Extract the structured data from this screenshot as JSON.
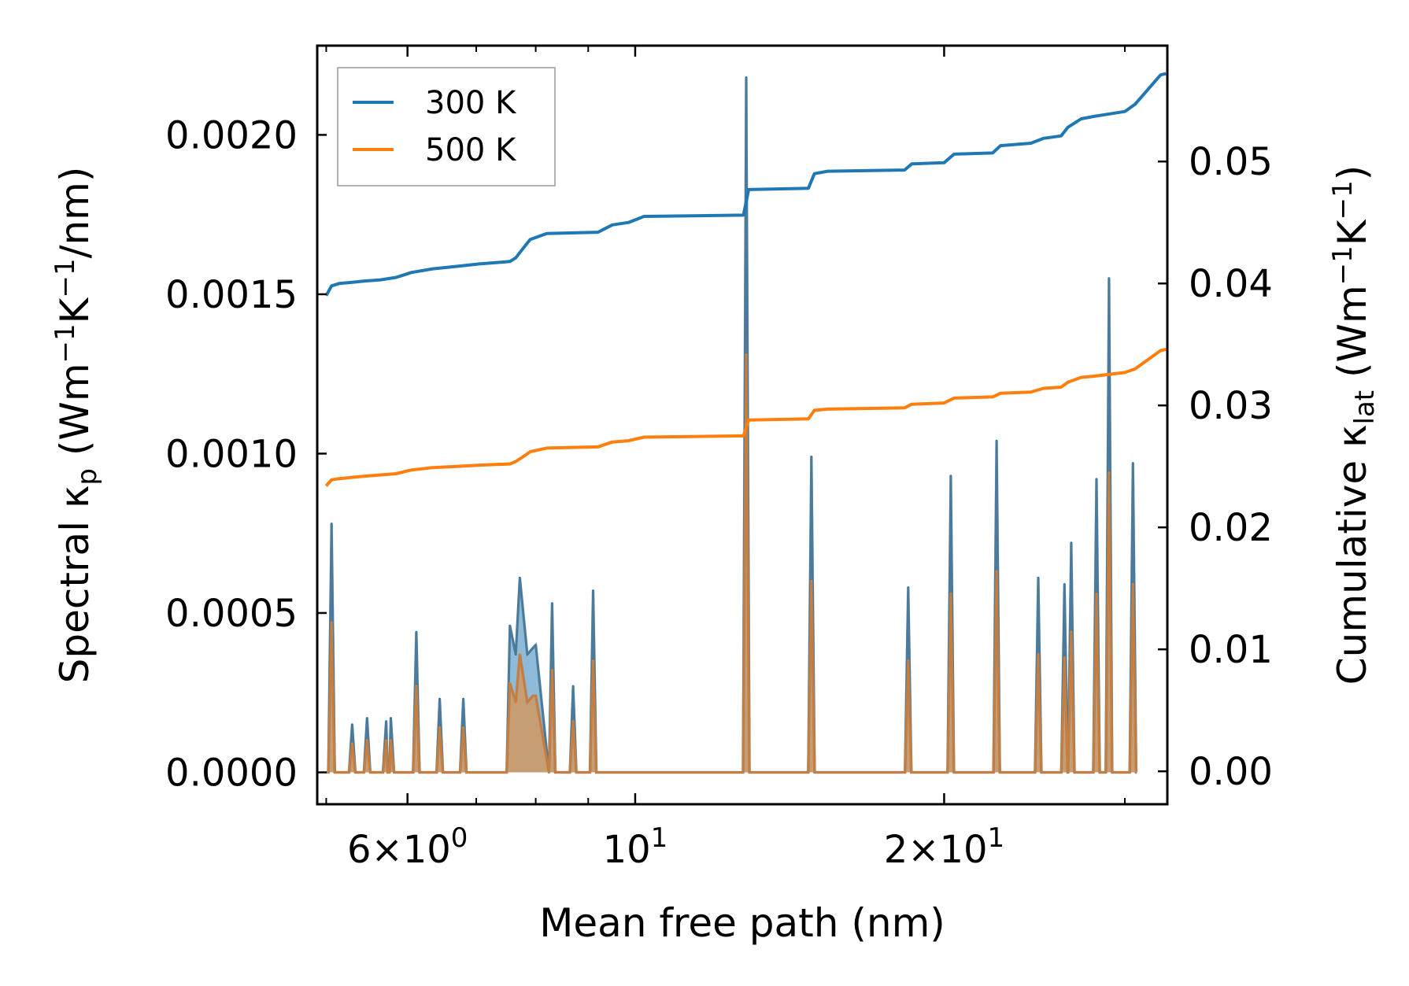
{
  "chart_data": {
    "type": "line",
    "title": "",
    "xlabel": "Mean free path (nm)",
    "ylabel_left": {
      "main": "Spectral κ",
      "sub": "p",
      "unit_open": " (Wm",
      "sup1": "−1",
      "k": "K",
      "sup2": "−1",
      "unit_close": "/nm)"
    },
    "ylabel_right": {
      "main": "Cumulative κ",
      "sub": "lat",
      "unit_open": " (Wm",
      "sup1": "−1",
      "k": "K",
      "sup2": "−1",
      "unit_close": ")"
    },
    "xscale": "log",
    "xlim": [
      4.9,
      33.0
    ],
    "ylim_left": [
      -0.0001,
      0.00228
    ],
    "ylim_right": [
      -0.0027,
      0.0595
    ],
    "x_ticks_major": [
      {
        "value": 6,
        "base": "6",
        "sep": "×",
        "pow": "10",
        "exp": "0"
      },
      {
        "value": 10,
        "base": "",
        "sep": "",
        "pow": "10",
        "exp": "1"
      },
      {
        "value": 20,
        "base": "2",
        "sep": "×",
        "pow": "10",
        "exp": "1"
      }
    ],
    "x_ticks_minor": [
      5,
      7,
      8,
      9,
      30
    ],
    "y_left_ticks": [
      "0.0000",
      "0.0005",
      "0.0010",
      "0.0015",
      "0.0020"
    ],
    "y_right_ticks": [
      "0.00",
      "0.01",
      "0.02",
      "0.03",
      "0.04",
      "0.05"
    ],
    "legend": {
      "position": "top-left",
      "entries": [
        "300 K",
        "500 K"
      ]
    },
    "series": [
      {
        "name": "300 K",
        "axis": "right",
        "kind": "cumulative line",
        "color": "#1f77b4",
        "points": [
          [
            5.0,
            0.039
          ],
          [
            5.06,
            0.0398
          ],
          [
            5.15,
            0.04
          ],
          [
            5.3,
            0.0401
          ],
          [
            5.45,
            0.0402
          ],
          [
            5.65,
            0.0403
          ],
          [
            5.85,
            0.0405
          ],
          [
            6.05,
            0.0409
          ],
          [
            6.35,
            0.0412
          ],
          [
            6.7,
            0.0414
          ],
          [
            7.05,
            0.0416
          ],
          [
            7.55,
            0.0418
          ],
          [
            7.65,
            0.0421
          ],
          [
            7.78,
            0.0429
          ],
          [
            7.9,
            0.0436
          ],
          [
            8.2,
            0.0441
          ],
          [
            9.2,
            0.0442
          ],
          [
            9.5,
            0.0448
          ],
          [
            9.85,
            0.045
          ],
          [
            10.2,
            0.0455
          ],
          [
            12.75,
            0.0456
          ],
          [
            12.9,
            0.0477
          ],
          [
            14.75,
            0.0478
          ],
          [
            14.95,
            0.049
          ],
          [
            15.4,
            0.0492
          ],
          [
            18.3,
            0.0493
          ],
          [
            18.6,
            0.0498
          ],
          [
            20.0,
            0.0499
          ],
          [
            20.45,
            0.0506
          ],
          [
            22.3,
            0.0507
          ],
          [
            22.7,
            0.0513
          ],
          [
            24.3,
            0.0515
          ],
          [
            25.0,
            0.0519
          ],
          [
            26.0,
            0.0521
          ],
          [
            26.4,
            0.0528
          ],
          [
            27.2,
            0.0535
          ],
          [
            28.0,
            0.0537
          ],
          [
            30.0,
            0.0541
          ],
          [
            30.7,
            0.0547
          ],
          [
            32.5,
            0.0571
          ],
          [
            32.9,
            0.0572
          ]
        ]
      },
      {
        "name": "500 K",
        "axis": "right",
        "kind": "cumulative line",
        "color": "#ff7f0e",
        "points": [
          [
            5.0,
            0.0234
          ],
          [
            5.06,
            0.0239
          ],
          [
            5.15,
            0.024
          ],
          [
            5.3,
            0.0241
          ],
          [
            5.45,
            0.0242
          ],
          [
            5.65,
            0.0243
          ],
          [
            5.85,
            0.0244
          ],
          [
            6.05,
            0.0247
          ],
          [
            6.35,
            0.0249
          ],
          [
            6.7,
            0.025
          ],
          [
            7.05,
            0.0251
          ],
          [
            7.55,
            0.0252
          ],
          [
            7.65,
            0.0254
          ],
          [
            7.78,
            0.0258
          ],
          [
            7.9,
            0.0262
          ],
          [
            8.2,
            0.0265
          ],
          [
            9.2,
            0.0266
          ],
          [
            9.5,
            0.027
          ],
          [
            9.85,
            0.0271
          ],
          [
            10.2,
            0.0274
          ],
          [
            12.75,
            0.0275
          ],
          [
            12.9,
            0.0288
          ],
          [
            14.75,
            0.0289
          ],
          [
            14.95,
            0.0296
          ],
          [
            15.4,
            0.0297
          ],
          [
            18.3,
            0.0298
          ],
          [
            18.6,
            0.0301
          ],
          [
            20.0,
            0.0302
          ],
          [
            20.45,
            0.0306
          ],
          [
            22.3,
            0.0307
          ],
          [
            22.7,
            0.031
          ],
          [
            24.3,
            0.0311
          ],
          [
            25.0,
            0.0314
          ],
          [
            26.0,
            0.0315
          ],
          [
            26.4,
            0.0319
          ],
          [
            27.2,
            0.0323
          ],
          [
            28.0,
            0.0324
          ],
          [
            30.0,
            0.0327
          ],
          [
            30.7,
            0.033
          ],
          [
            32.5,
            0.0345
          ],
          [
            32.9,
            0.0346
          ]
        ]
      },
      {
        "name": "300 K spectral",
        "axis": "left",
        "kind": "filled spectral",
        "color": "#1f77b4",
        "peaks": [
          [
            5.06,
            0.00078
          ],
          [
            5.3,
            0.00015
          ],
          [
            5.48,
            0.00017
          ],
          [
            5.72,
            0.00016
          ],
          [
            5.78,
            0.00017
          ],
          [
            6.12,
            0.00044
          ],
          [
            6.45,
            0.00023
          ],
          [
            6.8,
            0.00023
          ],
          [
            7.55,
            0.00046
          ],
          [
            7.72,
            0.00061
          ],
          [
            8.3,
            0.00053
          ],
          [
            8.7,
            0.00027
          ],
          [
            9.1,
            0.00057
          ],
          [
            12.83,
            0.00218
          ],
          [
            14.85,
            0.00099
          ],
          [
            18.45,
            0.00058
          ],
          [
            20.3,
            0.00093
          ],
          [
            22.5,
            0.00104
          ],
          [
            24.7,
            0.00061
          ],
          [
            26.2,
            0.00059
          ],
          [
            26.6,
            0.00072
          ],
          [
            28.15,
            0.00092
          ],
          [
            28.95,
            0.00155
          ],
          [
            30.55,
            0.00097
          ]
        ],
        "shoulder": [
          [
            7.65,
            0.00037
          ],
          [
            7.85,
            0.00037
          ],
          [
            7.95,
            0.00039
          ],
          [
            8.0,
            0.0004
          ]
        ]
      },
      {
        "name": "500 K spectral",
        "axis": "left",
        "kind": "filled spectral",
        "color": "#ff7f0e",
        "peaks": [
          [
            5.06,
            0.00047
          ],
          [
            5.3,
            9e-05
          ],
          [
            5.48,
            0.0001
          ],
          [
            5.72,
            0.0001
          ],
          [
            5.78,
            0.0001
          ],
          [
            6.12,
            0.00027
          ],
          [
            6.45,
            0.00014
          ],
          [
            6.8,
            0.00014
          ],
          [
            7.55,
            0.00028
          ],
          [
            7.72,
            0.00037
          ],
          [
            8.3,
            0.00032
          ],
          [
            8.7,
            0.00016
          ],
          [
            9.1,
            0.00035
          ],
          [
            12.83,
            0.00131
          ],
          [
            14.85,
            0.0006
          ],
          [
            18.45,
            0.00035
          ],
          [
            20.3,
            0.00056
          ],
          [
            22.5,
            0.00063
          ],
          [
            24.7,
            0.00037
          ],
          [
            26.2,
            0.00036
          ],
          [
            26.6,
            0.00044
          ],
          [
            28.15,
            0.00056
          ],
          [
            28.95,
            0.00094
          ],
          [
            30.55,
            0.00059
          ]
        ],
        "shoulder": [
          [
            7.65,
            0.00022
          ],
          [
            7.85,
            0.00022
          ],
          [
            7.95,
            0.00024
          ],
          [
            8.0,
            0.00024
          ]
        ]
      }
    ]
  }
}
